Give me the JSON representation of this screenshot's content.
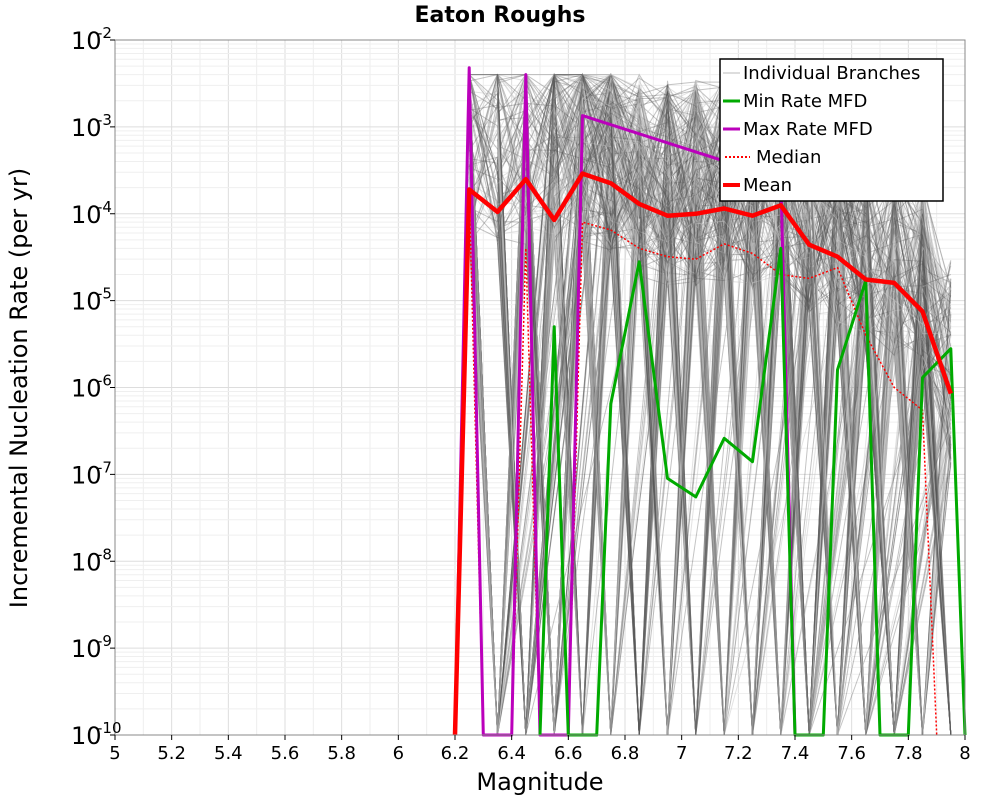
{
  "chart_data": {
    "type": "line",
    "title": "Eaton Roughs",
    "xlabel": "Magnitude",
    "ylabel": "Incremental Nucleation Rate (per yr)",
    "xscale": "linear",
    "yscale": "log",
    "xlim": [
      5,
      8
    ],
    "ylim": [
      1e-10,
      0.01
    ],
    "xticks": [
      "5",
      "5.2",
      "5.4",
      "5.6",
      "5.8",
      "6",
      "6.2",
      "6.4",
      "6.6",
      "6.8",
      "7",
      "7.2",
      "7.4",
      "7.6",
      "7.8",
      "8"
    ],
    "yticks": [
      {
        "base": "10",
        "exp": "-10"
      },
      {
        "base": "10",
        "exp": "-9"
      },
      {
        "base": "10",
        "exp": "-8"
      },
      {
        "base": "10",
        "exp": "-7"
      },
      {
        "base": "10",
        "exp": "-6"
      },
      {
        "base": "10",
        "exp": "-5"
      },
      {
        "base": "10",
        "exp": "-4"
      },
      {
        "base": "10",
        "exp": "-3"
      },
      {
        "base": "10",
        "exp": "-2"
      }
    ],
    "grid": true,
    "legend_position": "top-right",
    "series": [
      {
        "name": "Mean",
        "color": "#ff0000",
        "style": "solid-thick",
        "x": [
          6.2,
          6.25,
          6.35,
          6.45,
          6.55,
          6.65,
          6.75,
          6.85,
          6.95,
          7.05,
          7.15,
          7.25,
          7.35,
          7.45,
          7.55,
          7.65,
          7.75,
          7.85,
          7.95
        ],
        "y": [
          1e-10,
          0.00019,
          0.000105,
          0.00025,
          8.5e-05,
          0.00029,
          0.000225,
          0.00013,
          9.5e-05,
          0.0001,
          0.000115,
          9.5e-05,
          0.000125,
          4.4e-05,
          3.2e-05,
          1.75e-05,
          1.6e-05,
          7.5e-06,
          8.5e-07
        ]
      },
      {
        "name": "Median",
        "color": "#ff0000",
        "style": "dotted",
        "x": [
          6.2,
          6.25,
          6.3,
          6.4,
          6.45,
          6.5,
          6.55,
          6.6,
          6.65,
          6.75,
          6.85,
          6.95,
          7.05,
          7.15,
          7.25,
          7.35,
          7.45,
          7.55,
          7.65,
          7.75,
          7.85,
          7.9
        ],
        "y": [
          1e-10,
          0.00019,
          1e-10,
          1e-10,
          4e-05,
          1e-10,
          1e-10,
          1e-10,
          8e-05,
          6.5e-05,
          4e-05,
          3.2e-05,
          3e-05,
          4.5e-05,
          3.5e-05,
          2e-05,
          1.8e-05,
          2.4e-05,
          4e-06,
          1e-06,
          5.5e-07,
          1e-10
        ]
      },
      {
        "name": "Max Rate MFD",
        "color": "#bb00bb",
        "style": "solid",
        "x": [
          6.2,
          6.25,
          6.3,
          6.4,
          6.45,
          6.5,
          6.6,
          6.65,
          7.35,
          7.4
        ],
        "y": [
          1e-10,
          0.0048,
          1e-10,
          1e-10,
          0.004,
          1e-10,
          1e-10,
          0.00135,
          0.00025,
          1e-10
        ]
      },
      {
        "name": "Min Rate MFD",
        "color": "#00aa00",
        "style": "solid",
        "x": [
          6.5,
          6.55,
          6.6,
          6.7,
          6.75,
          6.85,
          6.95,
          7.05,
          7.15,
          7.25,
          7.35,
          7.4,
          7.5,
          7.55,
          7.65,
          7.7,
          7.8,
          7.85,
          7.95,
          8.0
        ],
        "y": [
          1e-10,
          5e-06,
          1e-10,
          1e-10,
          6.5e-07,
          2.8e-05,
          9e-08,
          5.5e-08,
          2.6e-07,
          1.4e-07,
          4e-05,
          1e-10,
          1e-10,
          1.6e-06,
          1.7e-05,
          1e-10,
          1e-10,
          1.3e-06,
          2.8e-06,
          1e-10
        ]
      },
      {
        "name": "Individual Branches",
        "color": "#555555",
        "style": "thin-many",
        "x": [],
        "y": []
      }
    ]
  },
  "legend": {
    "items": [
      {
        "label": "Individual Branches",
        "color": "#bbbbbb",
        "style": "thin"
      },
      {
        "label": "Min Rate MFD",
        "color": "#00aa00",
        "style": "solid"
      },
      {
        "label": "Max Rate MFD",
        "color": "#bb00bb",
        "style": "solid"
      },
      {
        "label": "Median",
        "color": "#ff0000",
        "style": "dotted"
      },
      {
        "label": "Mean",
        "color": "#ff0000",
        "style": "thick"
      }
    ]
  }
}
